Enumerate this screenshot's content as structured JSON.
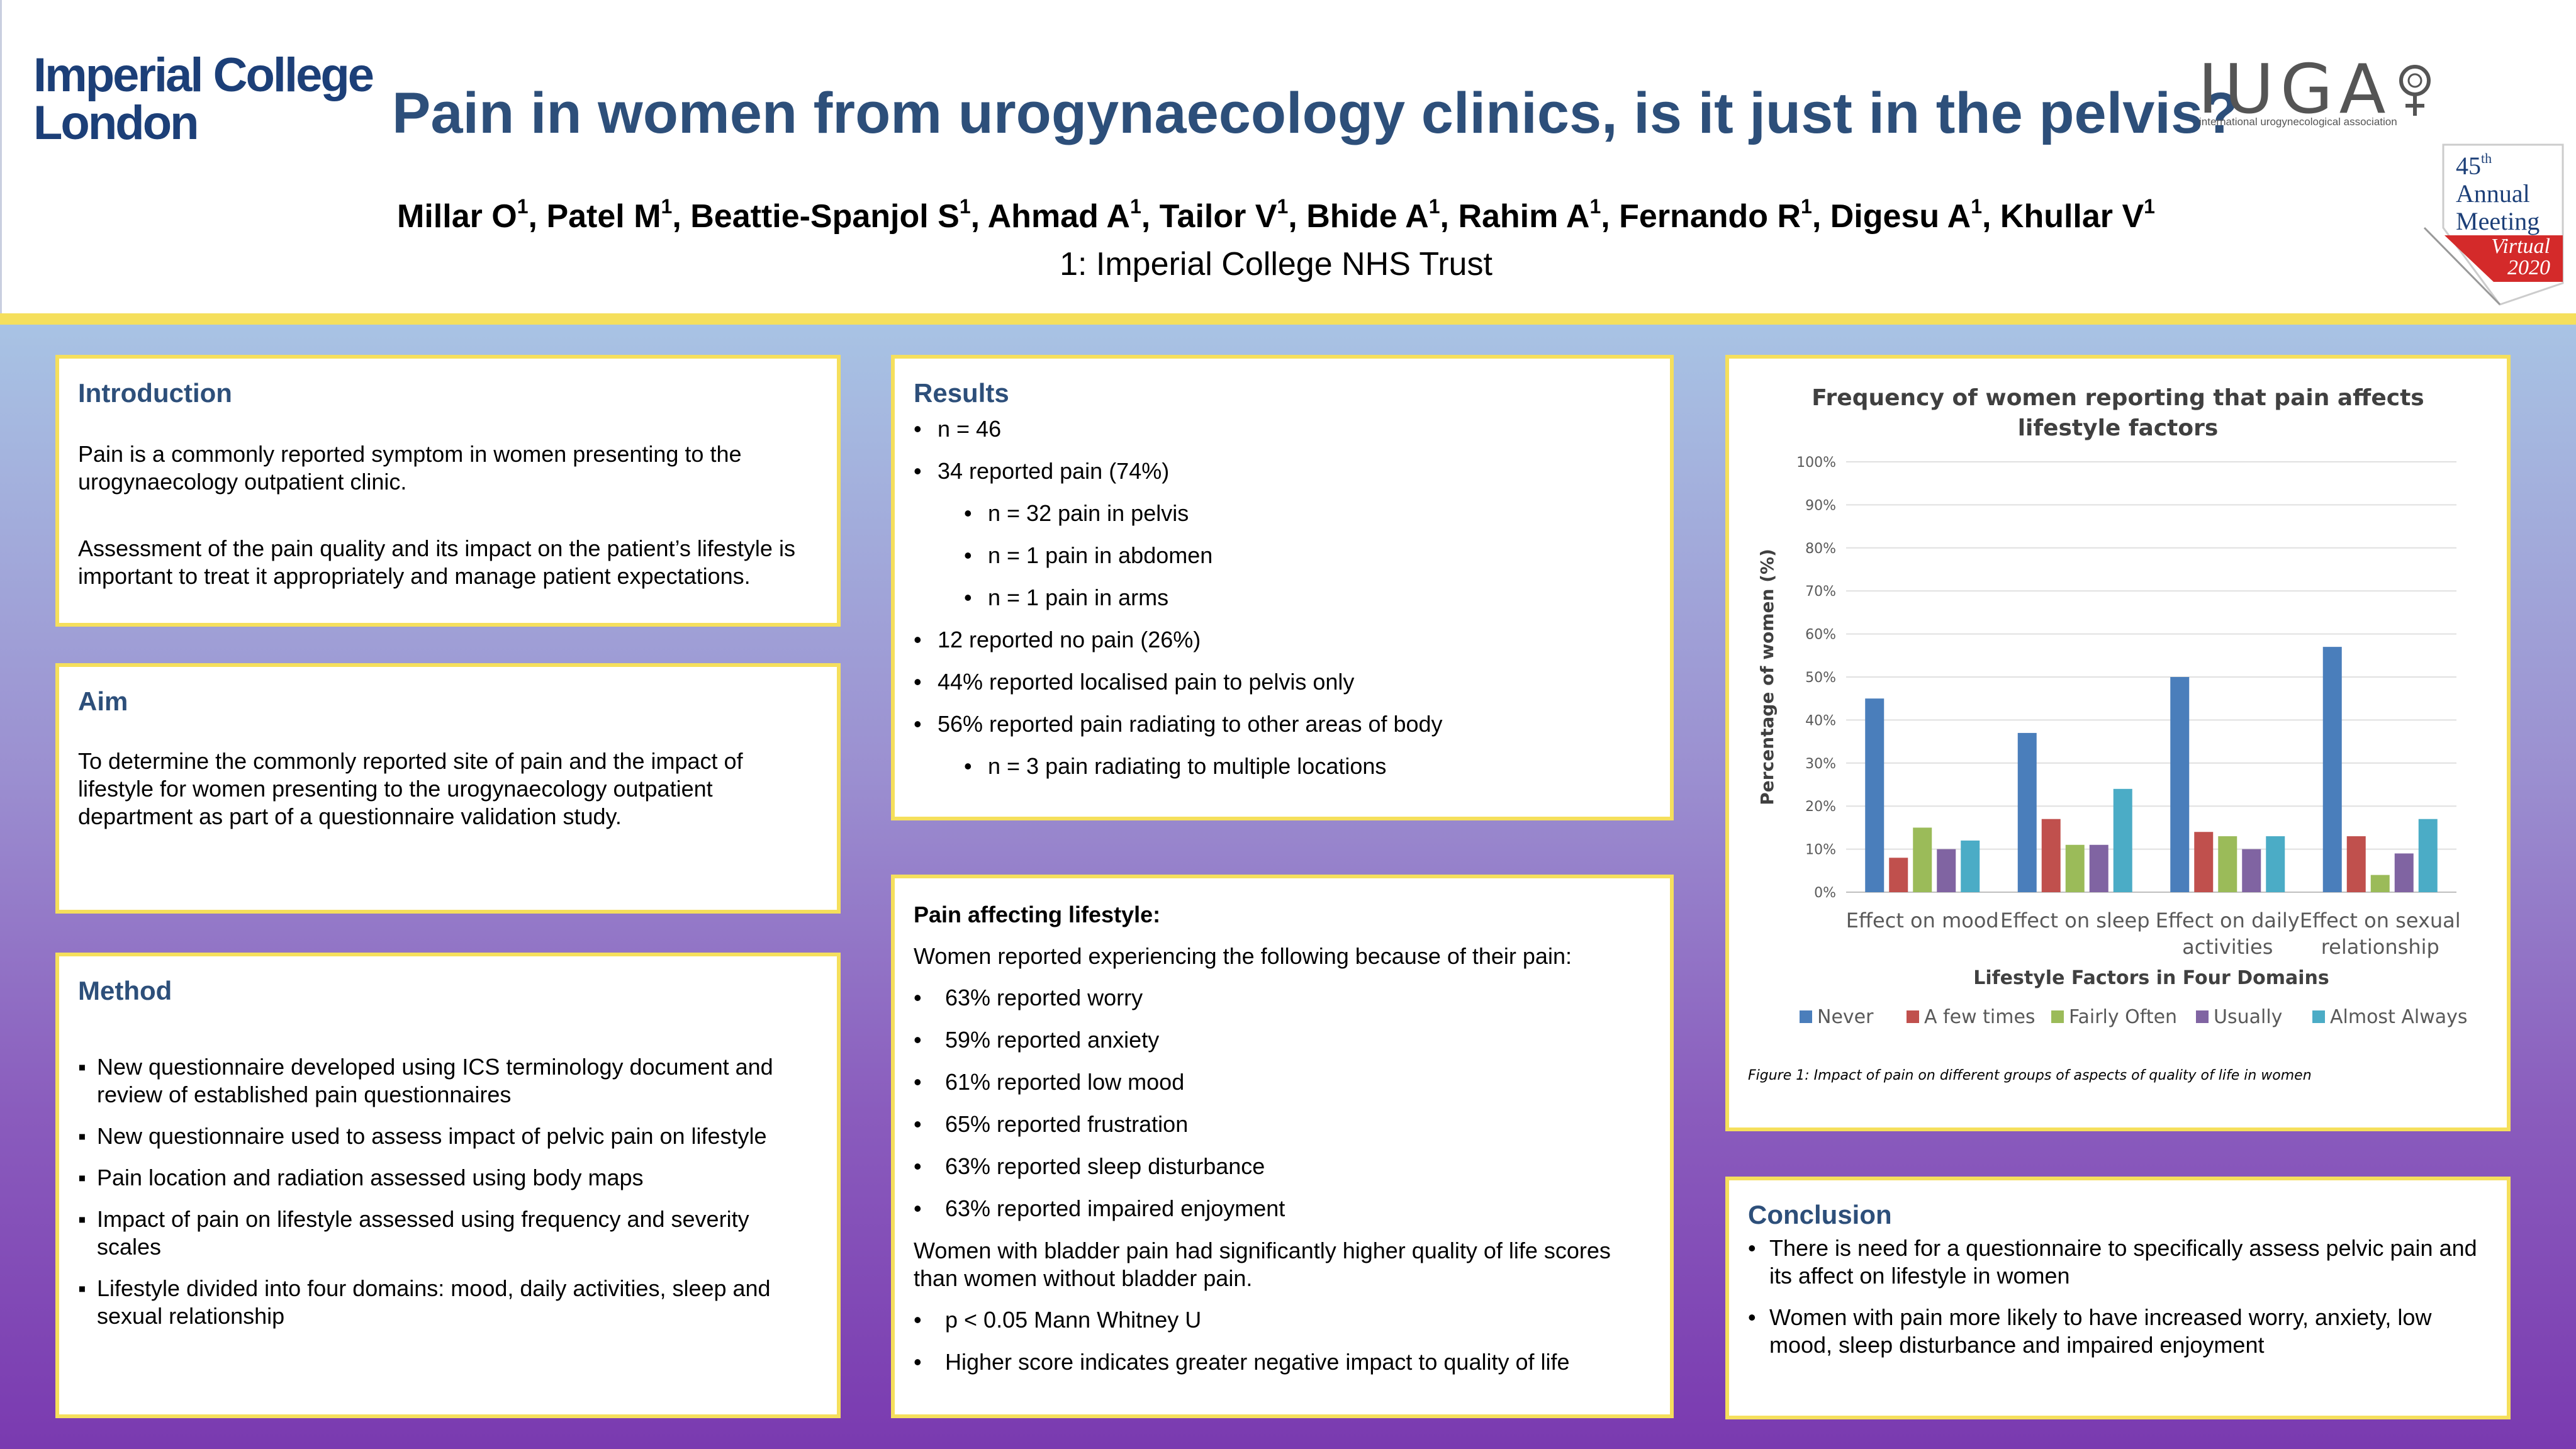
{
  "header": {
    "logo_line1": "Imperial College",
    "logo_line2": "London",
    "title": "Pain in women from urogynaecology clinics, is it just in the pelvis?",
    "authors": [
      {
        "name": "Millar O",
        "sup": "1"
      },
      {
        "name": "Patel M",
        "sup": "1"
      },
      {
        "name": "Beattie-Spanjol S",
        "sup": "1"
      },
      {
        "name": "Ahmad A",
        "sup": "1"
      },
      {
        "name": "Tailor V",
        "sup": "1"
      },
      {
        "name": "Bhide A",
        "sup": "1"
      },
      {
        "name": "Rahim A",
        "sup": "1"
      },
      {
        "name": "Fernando R",
        "sup": "1"
      },
      {
        "name": "Digesu A",
        "sup": "1"
      },
      {
        "name": "Khullar V",
        "sup": "1"
      }
    ],
    "affiliation": "1: Imperial College NHS Trust",
    "iuga_logo": "IUGA",
    "iuga_sub": "international urogynecological association",
    "badge_number": "45",
    "badge_suffix": "th",
    "badge_line2": "Annual",
    "badge_line3": "Meeting",
    "badge_virtual": "Virtual",
    "badge_year": "2020",
    "colors": {
      "navy": "#2d4f7a",
      "yellow": "#f5df5c",
      "red": "#d42a2a"
    }
  },
  "introduction": {
    "heading": "Introduction",
    "p1": "Pain is a commonly reported symptom in women presenting to the urogynaecology outpatient clinic.",
    "p2": "Assessment of the pain quality and its impact on the patient’s lifestyle is important to treat it appropriately and manage patient expectations."
  },
  "aim": {
    "heading": "Aim",
    "text": "To determine the commonly reported site of pain and the impact of lifestyle for women presenting to the urogynaecology outpatient department as part of a questionnaire validation study."
  },
  "method": {
    "heading": "Method",
    "items": [
      "New questionnaire developed using ICS terminology document and review of established pain questionnaires",
      "New questionnaire used to assess impact of pelvic pain on lifestyle",
      "Pain location and radiation assessed using body maps",
      "Impact of pain on lifestyle assessed using frequency and severity scales",
      "Lifestyle divided into four domains: mood, daily activities, sleep and sexual relationship"
    ]
  },
  "results": {
    "heading": "Results",
    "items": [
      {
        "text": "n = 46",
        "level": 0
      },
      {
        "text": "34 reported pain (74%)",
        "level": 0
      },
      {
        "text": "n = 32 pain in pelvis",
        "level": 1
      },
      {
        "text": "n = 1 pain in abdomen",
        "level": 1
      },
      {
        "text": "n = 1 pain in arms",
        "level": 1
      },
      {
        "text": "12 reported no pain (26%)",
        "level": 0
      },
      {
        "text": "44% reported localised pain to pelvis only",
        "level": 0
      },
      {
        "text": "56% reported pain radiating to other areas of body",
        "level": 0
      },
      {
        "text": "n = 3 pain radiating to multiple locations",
        "level": 1
      }
    ]
  },
  "lifestyle": {
    "heading": "Pain affecting lifestyle:",
    "intro": "Women reported experiencing the following because of their pain:",
    "items": [
      "63% reported worry",
      "59% reported anxiety",
      "61% reported low mood",
      "65% reported frustration",
      "63% reported sleep disturbance",
      "63% reported impaired enjoyment"
    ],
    "bladder_text": "Women with bladder pain had significantly higher quality of life scores than women without bladder pain.",
    "stats_items": [
      "p < 0.05 Mann Whitney U",
      "Higher score indicates greater negative impact to quality of life"
    ]
  },
  "chart_data": {
    "type": "bar",
    "title_line1": "Frequency of women reporting that pain affects",
    "title_line2": "lifestyle factors",
    "xlabel": "Lifestyle Factors in Four Domains",
    "ylabel": "Percentage of women (%)",
    "ylim": [
      0,
      100
    ],
    "yticks": [
      "0%",
      "10%",
      "20%",
      "30%",
      "40%",
      "50%",
      "60%",
      "70%",
      "80%",
      "90%",
      "100%"
    ],
    "categories": [
      [
        "Effect on mood"
      ],
      [
        "Effect on sleep"
      ],
      [
        "Effect on daily",
        "activities"
      ],
      [
        "Effect on sexual",
        "relationship"
      ]
    ],
    "series": [
      {
        "name": "Never",
        "color": "#4a7ebb",
        "values": [
          45,
          37,
          50,
          57
        ]
      },
      {
        "name": "A few times",
        "color": "#c0504d",
        "values": [
          8,
          17,
          14,
          13
        ]
      },
      {
        "name": "Fairly Often",
        "color": "#9bbb59",
        "values": [
          15,
          11,
          13,
          4
        ]
      },
      {
        "name": "Usually",
        "color": "#8064a2",
        "values": [
          10,
          11,
          10,
          9
        ]
      },
      {
        "name": "Almost Always",
        "color": "#4bacc6",
        "values": [
          12,
          24,
          13,
          17
        ]
      }
    ],
    "legend_position": "bottom",
    "grid": true,
    "caption": "Figure 1: Impact of pain on different groups of aspects of quality of life in women"
  },
  "conclusion": {
    "heading": "Conclusion",
    "items": [
      "There is need for a questionnaire to specifically assess pelvic pain and its affect on lifestyle in women",
      "Women with pain more likely to have increased worry, anxiety, low mood, sleep disturbance and impaired enjoyment"
    ]
  }
}
